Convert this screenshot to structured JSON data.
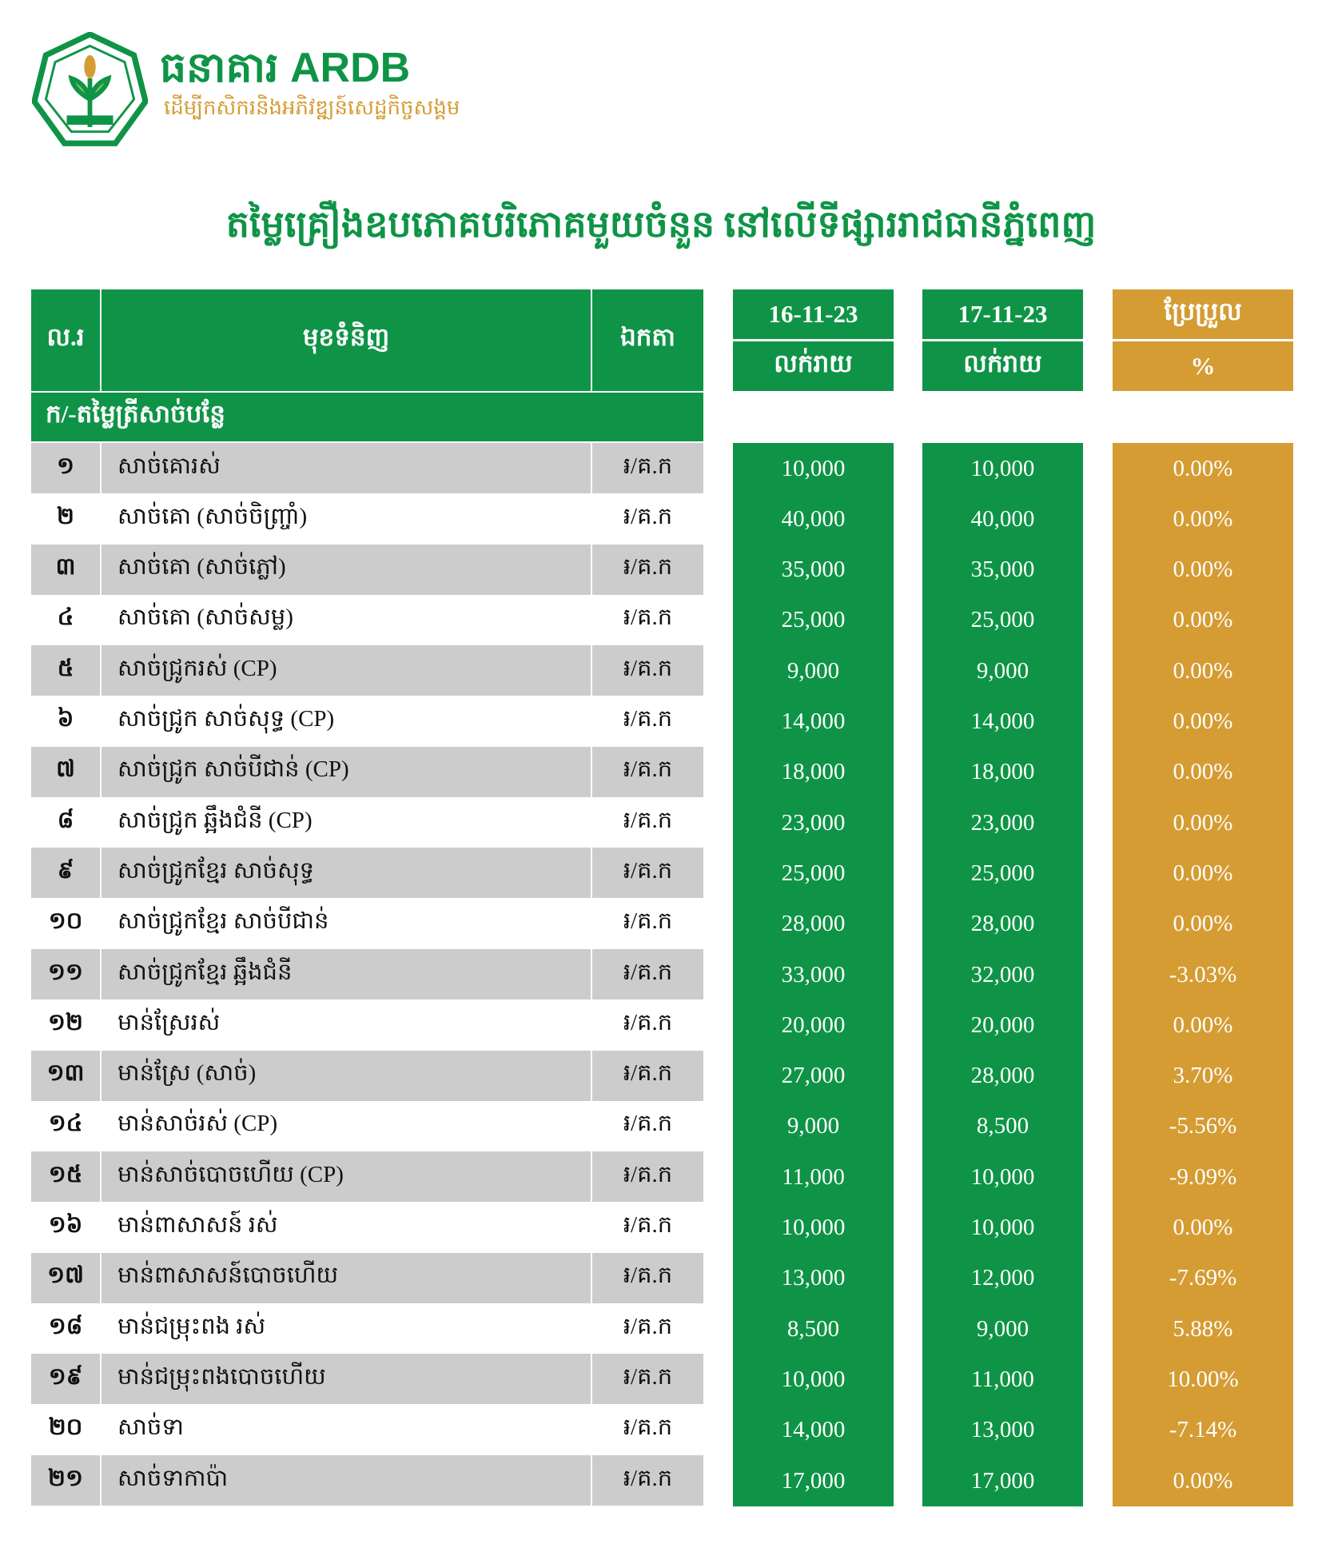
{
  "header": {
    "brand_khmer": "ធនាគារ",
    "brand": "ARDB",
    "slogan": "ដើម្បីកសិករនិងអភិវឌ្ឍន៍សេដ្ឋកិច្ចសង្គម",
    "title": "តម្លៃគ្រឿងឧបភោគបរិភោគមួយចំនួន នៅលើទីផ្សាររាជធានីភ្នំពេញ"
  },
  "columns": {
    "no": "ល.រ",
    "item": "មុខទំនិញ",
    "unit": "ឯកតា",
    "date1": "16-11-23",
    "date2": "17-11-23",
    "change": "ប្រែប្រួល",
    "price1": "លក់រាយ",
    "price2": "លក់រាយ",
    "pct": "%"
  },
  "section": "ក/-តម្លៃត្រីសាច់បន្លែ",
  "colors": {
    "green": "#0f9447",
    "gold": "#d49c33",
    "gray": "#cccccc"
  },
  "rows": [
    {
      "no": "១",
      "item": "សាច់គោរស់",
      "unit": "៛/គ.ក",
      "p1": "10,000",
      "p2": "10,000",
      "pct": "0.00%"
    },
    {
      "no": "២",
      "item": "សាច់គោ (សាច់ចិញ្ច្រាំ)",
      "unit": "៛/គ.ក",
      "p1": "40,000",
      "p2": "40,000",
      "pct": "0.00%"
    },
    {
      "no": "៣",
      "item": "សាច់គោ (សាច់ភ្លៅ)",
      "unit": "៛/គ.ក",
      "p1": "35,000",
      "p2": "35,000",
      "pct": "0.00%"
    },
    {
      "no": "៤",
      "item": "សាច់គោ (សាច់សម្ល)",
      "unit": "៛/គ.ក",
      "p1": "25,000",
      "p2": "25,000",
      "pct": "0.00%"
    },
    {
      "no": "៥",
      "item": "សាច់ជ្រូករស់ (CP)",
      "unit": "៛/គ.ក",
      "p1": "9,000",
      "p2": "9,000",
      "pct": "0.00%"
    },
    {
      "no": "៦",
      "item": "សាច់ជ្រូក សាច់សុទ្ធ (CP)",
      "unit": "៛/គ.ក",
      "p1": "14,000",
      "p2": "14,000",
      "pct": "0.00%"
    },
    {
      "no": "៧",
      "item": "សាច់ជ្រូក សាច់បីជាន់ (CP)",
      "unit": "៛/គ.ក",
      "p1": "18,000",
      "p2": "18,000",
      "pct": "0.00%"
    },
    {
      "no": "៨",
      "item": "សាច់ជ្រូក ឆ្អឹងជំនី (CP)",
      "unit": "៛/គ.ក",
      "p1": "23,000",
      "p2": "23,000",
      "pct": "0.00%"
    },
    {
      "no": "៩",
      "item": "សាច់ជ្រូកខ្មែរ សាច់សុទ្ធ",
      "unit": "៛/គ.ក",
      "p1": "25,000",
      "p2": "25,000",
      "pct": "0.00%"
    },
    {
      "no": "១០",
      "item": "សាច់ជ្រូកខ្មែរ សាច់បីជាន់",
      "unit": "៛/គ.ក",
      "p1": "28,000",
      "p2": "28,000",
      "pct": "0.00%"
    },
    {
      "no": "១១",
      "item": "សាច់ជ្រូកខ្មែរ ឆ្អឹងជំនី",
      "unit": "៛/គ.ក",
      "p1": "33,000",
      "p2": "32,000",
      "pct": "-3.03%"
    },
    {
      "no": "១២",
      "item": "មាន់ស្រែរស់",
      "unit": "៛/គ.ក",
      "p1": "20,000",
      "p2": "20,000",
      "pct": "0.00%"
    },
    {
      "no": "១៣",
      "item": "មាន់ស្រែ (សាច់)",
      "unit": "៛/គ.ក",
      "p1": "27,000",
      "p2": "28,000",
      "pct": "3.70%"
    },
    {
      "no": "១៤",
      "item": "មាន់សាច់រស់ (CP)",
      "unit": "៛/គ.ក",
      "p1": "9,000",
      "p2": "8,500",
      "pct": "-5.56%"
    },
    {
      "no": "១៥",
      "item": "មាន់សាច់បោចហើយ (CP)",
      "unit": "៛/គ.ក",
      "p1": "11,000",
      "p2": "10,000",
      "pct": "-9.09%"
    },
    {
      "no": "១៦",
      "item": "មាន់ពាសាសន៍ រស់",
      "unit": "៛/គ.ក",
      "p1": "10,000",
      "p2": "10,000",
      "pct": "0.00%"
    },
    {
      "no": "១៧",
      "item": "មាន់ពាសាសន៍បោចហើយ",
      "unit": "៛/គ.ក",
      "p1": "13,000",
      "p2": "12,000",
      "pct": "-7.69%"
    },
    {
      "no": "១៨",
      "item": "មាន់ជម្រុះពង រស់",
      "unit": "៛/គ.ក",
      "p1": "8,500",
      "p2": "9,000",
      "pct": "5.88%"
    },
    {
      "no": "១៩",
      "item": "មាន់ជម្រុះពងបោចហើយ",
      "unit": "៛/គ.ក",
      "p1": "10,000",
      "p2": "11,000",
      "pct": "10.00%"
    },
    {
      "no": "២០",
      "item": "សាច់ទា",
      "unit": "៛/គ.ក",
      "p1": "14,000",
      "p2": "13,000",
      "pct": "-7.14%"
    },
    {
      "no": "២១",
      "item": "សាច់ទាកាប៉ា",
      "unit": "៛/គ.ក",
      "p1": "17,000",
      "p2": "17,000",
      "pct": "0.00%"
    }
  ]
}
